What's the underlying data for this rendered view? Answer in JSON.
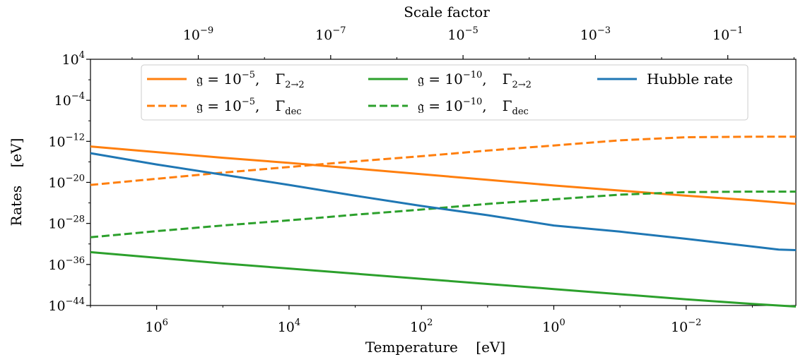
{
  "chart_data": {
    "type": "line",
    "title": "",
    "xlabel": "Temperature    [eV]",
    "ylabel": "Rates    [eV]",
    "top_xlabel": "Scale factor",
    "x_scale": "log",
    "x_direction": "decreasing",
    "y_scale": "log",
    "xlim": [
      10000000.0,
      0.00022
    ],
    "ylim": [
      1e-44,
      10000.0
    ],
    "x_ticks": [
      {
        "base": "10",
        "exp": "6",
        "value": 1000000.0
      },
      {
        "base": "10",
        "exp": "4",
        "value": 10000.0
      },
      {
        "base": "10",
        "exp": "2",
        "value": 100.0
      },
      {
        "base": "10",
        "exp": "0",
        "value": 1.0
      },
      {
        "base": "10",
        "exp": "−2",
        "value": 0.01
      }
    ],
    "y_ticks": [
      {
        "base": "10",
        "exp": "4",
        "value": 4
      },
      {
        "base": "10",
        "exp": "−4",
        "value": -4
      },
      {
        "base": "10",
        "exp": "−12",
        "value": -12
      },
      {
        "base": "10",
        "exp": "−20",
        "value": -20
      },
      {
        "base": "10",
        "exp": "−28",
        "value": -28
      },
      {
        "base": "10",
        "exp": "−36",
        "value": -36
      },
      {
        "base": "10",
        "exp": "−44",
        "value": -44
      }
    ],
    "top_ticks": [
      {
        "base": "10",
        "exp": "−9",
        "value": 1e-09
      },
      {
        "base": "10",
        "exp": "−7",
        "value": 1e-07
      },
      {
        "base": "10",
        "exp": "−5",
        "value": 1e-05
      },
      {
        "base": "10",
        "exp": "−3",
        "value": 0.001
      },
      {
        "base": "10",
        "exp": "−1",
        "value": 0.1
      }
    ],
    "grid": false,
    "legend_position": "top",
    "legend": [
      {
        "coupling": "𝔤 = 10",
        "coupling_exp": "−5",
        "rate": "Γ",
        "rate_sub": "2→2",
        "series_index": 0
      },
      {
        "coupling": "𝔤 = 10",
        "coupling_exp": "−5",
        "rate": "Γ",
        "rate_sub": "dec",
        "series_index": 1
      },
      {
        "coupling": "𝔤 = 10",
        "coupling_exp": "−10",
        "rate": "Γ",
        "rate_sub": "2→2",
        "series_index": 2
      },
      {
        "coupling": "𝔤 = 10",
        "coupling_exp": "−10",
        "rate": "Γ",
        "rate_sub": "dec",
        "series_index": 3
      },
      {
        "label": "Hubble rate",
        "series_index": 4
      }
    ],
    "series": [
      {
        "color": "#ff7f0e",
        "dash": "solid",
        "points": [
          [
            10000000.0,
            -13.0
          ],
          [
            1000000.0,
            -14.1
          ],
          [
            100000.0,
            -15.2
          ],
          [
            10000.0,
            -16.2
          ],
          [
            1000.0,
            -17.3
          ],
          [
            100.0,
            -18.4
          ],
          [
            10.0,
            -19.5
          ],
          [
            1.0,
            -20.6
          ],
          [
            0.1,
            -21.6
          ],
          [
            0.01,
            -22.6
          ],
          [
            0.001,
            -23.5
          ],
          [
            0.00022,
            -24.2
          ]
        ]
      },
      {
        "color": "#ff7f0e",
        "dash": "dashed",
        "points": [
          [
            10000000.0,
            -20.5
          ],
          [
            1000000.0,
            -19.3
          ],
          [
            100000.0,
            -18.1
          ],
          [
            10000.0,
            -17.0
          ],
          [
            1000.0,
            -15.9
          ],
          [
            100.0,
            -14.9
          ],
          [
            10.0,
            -13.8
          ],
          [
            1.0,
            -12.8
          ],
          [
            0.1,
            -11.8
          ],
          [
            0.01,
            -11.2
          ],
          [
            0.001,
            -11.1
          ],
          [
            0.00022,
            -11.1
          ]
        ]
      },
      {
        "color": "#2ca02c",
        "dash": "solid",
        "points": [
          [
            10000000.0,
            -33.6
          ],
          [
            1000000.0,
            -34.7
          ],
          [
            100000.0,
            -35.8
          ],
          [
            10000.0,
            -36.8
          ],
          [
            1000.0,
            -37.8
          ],
          [
            100.0,
            -38.8
          ],
          [
            10.0,
            -39.8
          ],
          [
            1.0,
            -40.8
          ],
          [
            0.1,
            -41.8
          ],
          [
            0.01,
            -42.8
          ],
          [
            0.001,
            -43.7
          ],
          [
            0.00022,
            -44.2
          ]
        ]
      },
      {
        "color": "#2ca02c",
        "dash": "dashed",
        "points": [
          [
            10000000.0,
            -30.7
          ],
          [
            1000000.0,
            -29.5
          ],
          [
            100000.0,
            -28.4
          ],
          [
            10000.0,
            -27.4
          ],
          [
            1000.0,
            -26.3
          ],
          [
            100.0,
            -25.3
          ],
          [
            10.0,
            -24.2
          ],
          [
            1.0,
            -23.3
          ],
          [
            0.1,
            -22.4
          ],
          [
            0.01,
            -21.9
          ],
          [
            0.001,
            -21.8
          ],
          [
            0.00022,
            -21.8
          ]
        ]
      },
      {
        "color": "#1f77b4",
        "dash": "solid",
        "points": [
          [
            10000000.0,
            -14.3
          ],
          [
            1000000.0,
            -16.5
          ],
          [
            100000.0,
            -18.5
          ],
          [
            10000.0,
            -20.5
          ],
          [
            1000.0,
            -22.6
          ],
          [
            100.0,
            -24.6
          ],
          [
            10.0,
            -26.4
          ],
          [
            1.0,
            -28.4
          ],
          [
            0.1,
            -29.6
          ],
          [
            0.01,
            -31.0
          ],
          [
            0.001,
            -32.5
          ],
          [
            0.0004,
            -33.1
          ],
          [
            0.00022,
            -33.2
          ]
        ]
      }
    ]
  }
}
